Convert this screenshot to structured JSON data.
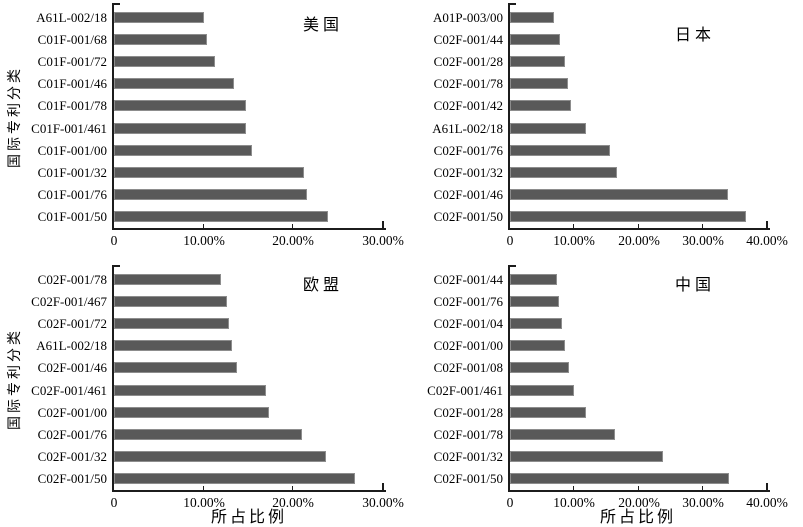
{
  "figure": {
    "background": "#ffffff",
    "bar_color": "#595959",
    "bar_border_color": "#8d8d8d",
    "axis_color": "#1c1c1c",
    "shared_ylabel": "国际专利分类",
    "shared_xlabel": "所占比例"
  },
  "chart_data": [
    {
      "type": "bar",
      "orientation": "horizontal",
      "title": "美国",
      "ylabel": "国际专利分类",
      "xlabel": "",
      "xlim": [
        0,
        30
      ],
      "grid": false,
      "legend": "none",
      "value_unit": "percent",
      "xticks": [
        {
          "value": 0,
          "label": "0"
        },
        {
          "value": 10,
          "label": "10.00%"
        },
        {
          "value": 20,
          "label": "20.00%"
        },
        {
          "value": 30,
          "label": "30.00%"
        }
      ],
      "categories": [
        "A61L-002/18",
        "C01F-001/68",
        "C01F-001/72",
        "C01F-001/46",
        "C01F-001/78",
        "C01F-001/461",
        "C01F-001/00",
        "C01F-001/32",
        "C01F-001/76",
        "C01F-001/50"
      ],
      "values": [
        10.0,
        10.4,
        11.3,
        13.4,
        14.7,
        14.7,
        15.4,
        21.2,
        21.5,
        23.9
      ]
    },
    {
      "type": "bar",
      "orientation": "horizontal",
      "title": "日本",
      "ylabel": "",
      "xlabel": "",
      "xlim": [
        0,
        40
      ],
      "grid": false,
      "legend": "none",
      "value_unit": "percent",
      "xticks": [
        {
          "value": 0,
          "label": "0"
        },
        {
          "value": 10,
          "label": "10.00%"
        },
        {
          "value": 20,
          "label": "20.00%"
        },
        {
          "value": 30,
          "label": "30.00%"
        },
        {
          "value": 40,
          "label": "40.00%"
        }
      ],
      "categories": [
        "A01P-003/00",
        "C02F-001/44",
        "C02F-001/28",
        "C02F-001/78",
        "C02F-001/42",
        "A61L-002/18",
        "C02F-001/76",
        "C02F-001/32",
        "C02F-001/46",
        "C02F-001/50"
      ],
      "values": [
        6.9,
        7.8,
        8.5,
        9.0,
        9.5,
        11.9,
        15.6,
        16.7,
        33.9,
        36.7
      ]
    },
    {
      "type": "bar",
      "orientation": "horizontal",
      "title": "欧盟",
      "ylabel": "国际专利分类",
      "xlabel": "所占比例",
      "xlim": [
        0,
        30
      ],
      "grid": false,
      "legend": "none",
      "value_unit": "percent",
      "xticks": [
        {
          "value": 0,
          "label": "0"
        },
        {
          "value": 10,
          "label": "10.00%"
        },
        {
          "value": 20,
          "label": "20.00%"
        },
        {
          "value": 30,
          "label": "30.00%"
        }
      ],
      "categories": [
        "C02F-001/78",
        "C02F-001/467",
        "C02F-001/72",
        "A61L-002/18",
        "C02F-001/46",
        "C02F-001/461",
        "C02F-001/00",
        "C02F-001/76",
        "C02F-001/32",
        "C02F-001/50"
      ],
      "values": [
        11.9,
        12.6,
        12.8,
        13.2,
        13.7,
        16.9,
        17.3,
        21.0,
        23.6,
        26.9
      ]
    },
    {
      "type": "bar",
      "orientation": "horizontal",
      "title": "中国",
      "ylabel": "",
      "xlabel": "所占比例",
      "xlim": [
        0,
        40
      ],
      "grid": false,
      "legend": "none",
      "value_unit": "percent",
      "xticks": [
        {
          "value": 0,
          "label": "0"
        },
        {
          "value": 10,
          "label": "10.00%"
        },
        {
          "value": 20,
          "label": "20.00%"
        },
        {
          "value": 30,
          "label": "30.00%"
        },
        {
          "value": 40,
          "label": "40.00%"
        }
      ],
      "categories": [
        "C02F-001/44",
        "C02F-001/76",
        "C02F-001/04",
        "C02F-001/00",
        "C02F-001/08",
        "C02F-001/461",
        "C02F-001/28",
        "C02F-001/78",
        "C02F-001/32",
        "C02F-001/50"
      ],
      "values": [
        7.3,
        7.7,
        8.1,
        8.5,
        9.2,
        9.9,
        11.8,
        16.3,
        23.8,
        34.1
      ]
    }
  ]
}
